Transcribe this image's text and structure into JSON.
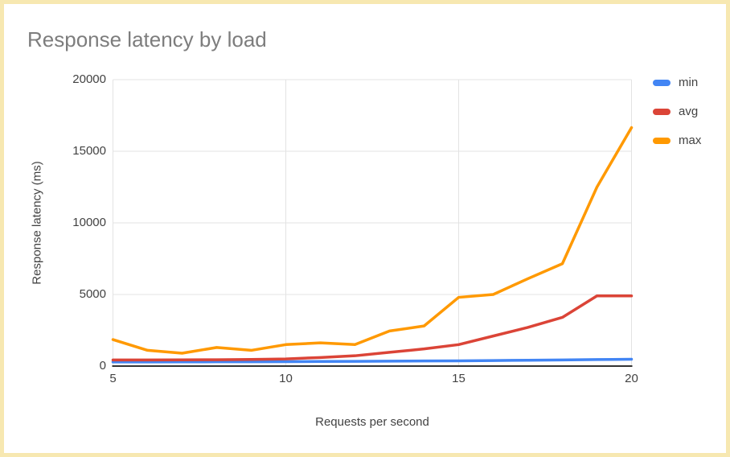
{
  "page": {
    "background": "#ffffff",
    "border_color": "#f7e8b1"
  },
  "header": {
    "title": "Response latency by load",
    "title_color": "#7d7d7d"
  },
  "legend": {
    "position": "right",
    "items": [
      {
        "label": "min",
        "color": "#4285f4"
      },
      {
        "label": "avg",
        "color": "#db4437"
      },
      {
        "label": "max",
        "color": "#ff9900"
      }
    ]
  },
  "chart_data": {
    "type": "line",
    "title": "Response latency by load",
    "xlabel": "Requests per second",
    "ylabel": "Response latency (ms)",
    "x": [
      5,
      6,
      7,
      8,
      9,
      10,
      11,
      12,
      13,
      14,
      15,
      16,
      17,
      18,
      19,
      20
    ],
    "series": [
      {
        "name": "min",
        "color": "#4285f4",
        "values": [
          290,
          290,
          295,
          300,
          300,
          310,
          320,
          330,
          345,
          355,
          365,
          385,
          410,
          430,
          455,
          480
        ]
      },
      {
        "name": "avg",
        "color": "#db4437",
        "values": [
          430,
          430,
          435,
          445,
          465,
          500,
          600,
          720,
          960,
          1200,
          1500,
          2100,
          2700,
          3400,
          4900,
          4900
        ]
      },
      {
        "name": "max",
        "color": "#ff9900",
        "values": [
          1850,
          1100,
          900,
          1300,
          1100,
          1500,
          1620,
          1500,
          2450,
          2800,
          4800,
          5000,
          6100,
          7150,
          12500,
          16650
        ]
      }
    ],
    "xlim": [
      5,
      20
    ],
    "ylim": [
      0,
      20000
    ],
    "xticks": [
      "5",
      "10",
      "15",
      "20"
    ],
    "yticks": [
      "0",
      "5000",
      "10000",
      "15000",
      "20000"
    ],
    "grid": true,
    "gridline_color": "#e3e3e3",
    "baseline_color": "#333333",
    "legend_position": "right"
  }
}
